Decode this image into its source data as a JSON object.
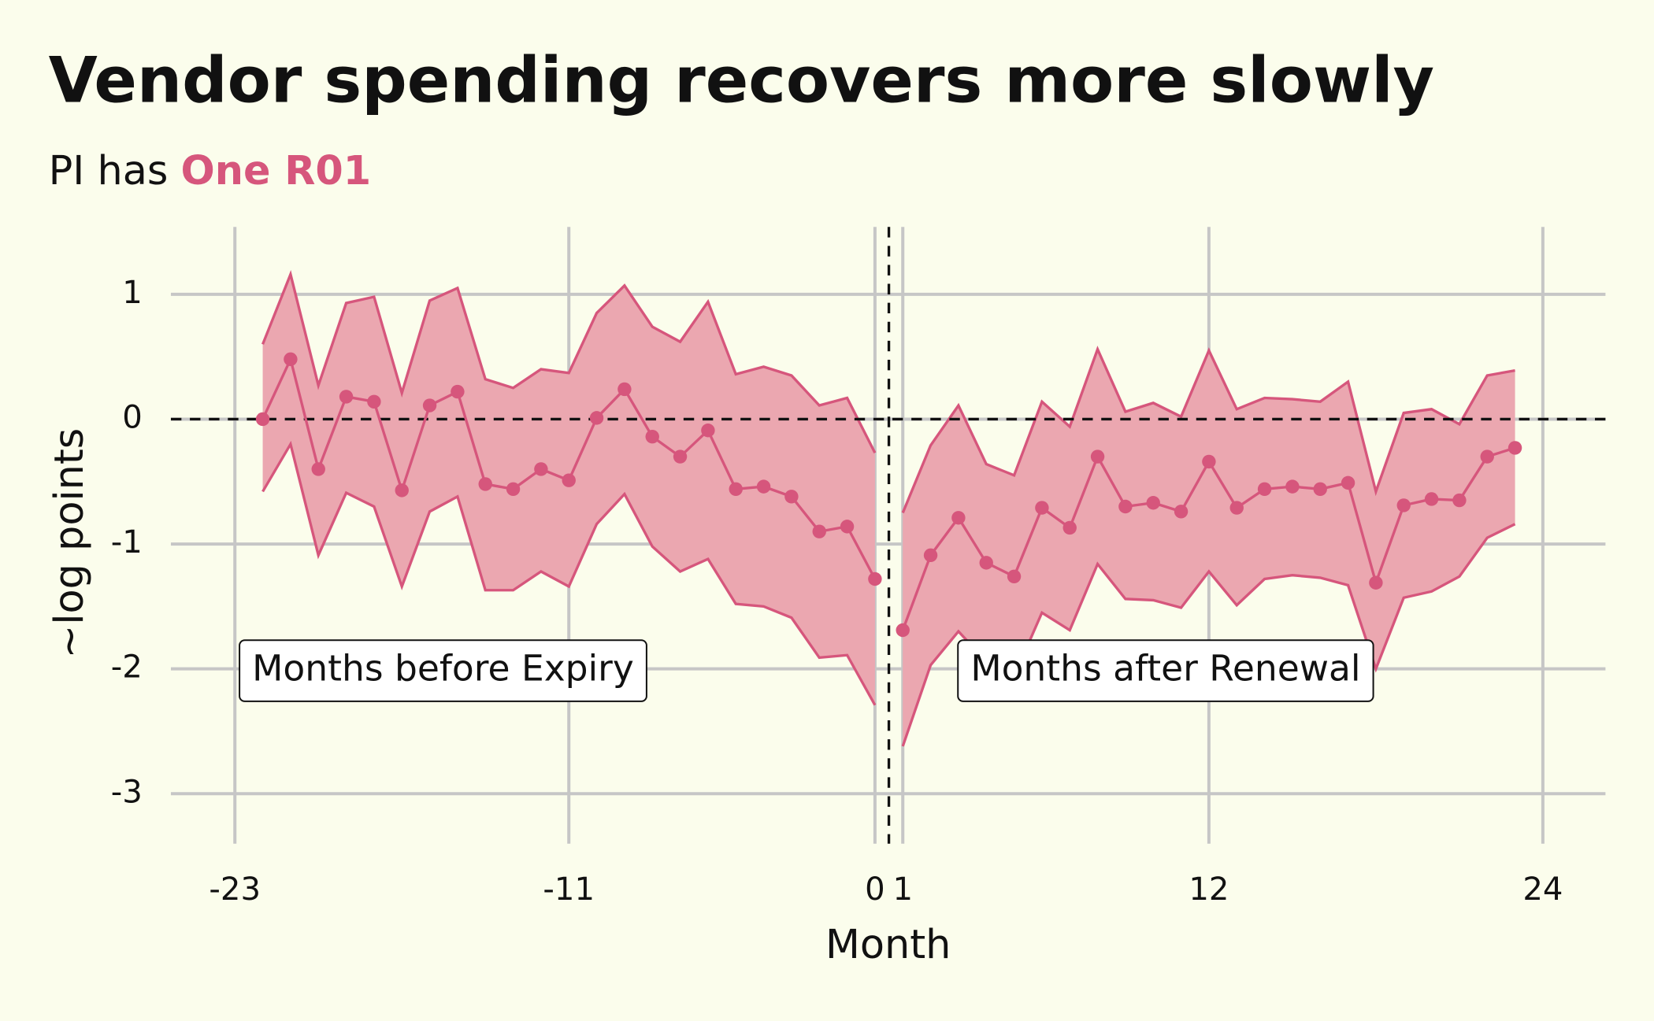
{
  "chart_data": {
    "type": "line",
    "title": "Vendor spending recovers more slowly",
    "subtitle": {
      "prefix": "PI has",
      "highlight": "One R01",
      "highlight_color": "#d6567c"
    },
    "x_label": "Month",
    "y_label": "~log points",
    "xlim": [
      -25.3,
      26.25
    ],
    "xticks": [
      -23,
      -11,
      0,
      1,
      12,
      24
    ],
    "ylim": [
      -3.4,
      1.54
    ],
    "yticks": [
      -3,
      -2,
      -1,
      0,
      1
    ],
    "grid": true,
    "reference_lines": {
      "y": 0,
      "x": 0.5
    },
    "annotations": [
      "Months before Expiry",
      "Months after Renewal"
    ],
    "band_color": "#eba7b0",
    "series": [
      {
        "color": "#d6567c",
        "x": [
          -22,
          -21,
          -20,
          -19,
          -18,
          -17,
          -16,
          -15,
          -14,
          -13,
          -12,
          -11,
          -10,
          -9,
          -8,
          -7,
          -6,
          -5,
          -4,
          -3,
          -2,
          -1,
          0
        ],
        "values": [
          0,
          0.48,
          -0.4,
          0.18,
          0.14,
          -0.57,
          0.11,
          0.22,
          -0.52,
          -0.56,
          -0.4,
          -0.49,
          0.01,
          0.24,
          -0.14,
          -0.3,
          -0.09,
          -0.56,
          -0.54,
          -0.62,
          -0.9,
          -0.86,
          -1.28
        ],
        "upper": [
          0.6,
          1.16,
          0.27,
          0.93,
          0.98,
          0.21,
          0.95,
          1.05,
          0.32,
          0.25,
          0.4,
          0.37,
          0.85,
          1.07,
          0.74,
          0.62,
          0.94,
          0.36,
          0.42,
          0.35,
          0.11,
          0.17,
          -0.27
        ],
        "lower": [
          -0.58,
          -0.2,
          -1.09,
          -0.59,
          -0.7,
          -1.34,
          -0.74,
          -0.62,
          -1.37,
          -1.37,
          -1.22,
          -1.34,
          -0.84,
          -0.6,
          -1.02,
          -1.22,
          -1.12,
          -1.48,
          -1.5,
          -1.59,
          -1.91,
          -1.89,
          -2.29
        ]
      },
      {
        "color": "#d6567c",
        "x": [
          1,
          2,
          3,
          4,
          5,
          6,
          7,
          8,
          9,
          10,
          11,
          12,
          13,
          14,
          15,
          16,
          17,
          18,
          19,
          20,
          21,
          22,
          23
        ],
        "values": [
          -1.69,
          -1.09,
          -0.79,
          -1.15,
          -1.26,
          -0.71,
          -0.87,
          -0.3,
          -0.7,
          -0.67,
          -0.74,
          -0.34,
          -0.71,
          -0.56,
          -0.54,
          -0.56,
          -0.51,
          -1.31,
          -0.69,
          -0.64,
          -0.65,
          -0.3,
          -0.23
        ],
        "upper": [
          -0.75,
          -0.21,
          0.11,
          -0.36,
          -0.45,
          0.14,
          -0.06,
          0.56,
          0.06,
          0.13,
          0.02,
          0.55,
          0.08,
          0.17,
          0.16,
          0.14,
          0.3,
          -0.58,
          0.05,
          0.08,
          -0.04,
          0.35,
          0.39
        ],
        "lower": [
          -2.62,
          -1.97,
          -1.7,
          -1.94,
          -2.06,
          -1.55,
          -1.69,
          -1.16,
          -1.44,
          -1.45,
          -1.51,
          -1.22,
          -1.49,
          -1.28,
          -1.25,
          -1.27,
          -1.33,
          -2.0,
          -1.43,
          -1.38,
          -1.26,
          -0.95,
          -0.84
        ]
      }
    ]
  }
}
